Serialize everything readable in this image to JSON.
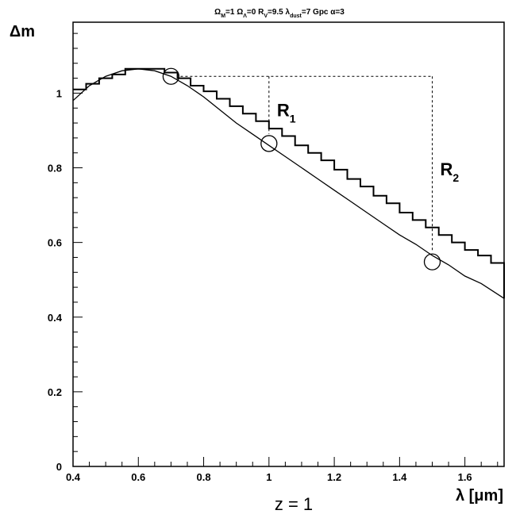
{
  "chart_data": {
    "type": "line",
    "title": "Ω_M=1 Ω_Λ=0 R_V=9.5 λ_dust=7 Gpc α=3",
    "xlabel": "λ [μm]",
    "ylabel": "Δm",
    "footer_label": "z = 1",
    "xlim": [
      0.4,
      1.72
    ],
    "ylim": [
      0,
      1.19
    ],
    "x_ticks": [
      0.4,
      0.6,
      0.8,
      1.0,
      1.2,
      1.4,
      1.6
    ],
    "x_tick_labels": [
      "0.4",
      "0.6",
      "0.8",
      "1",
      "1.2",
      "1.4",
      "1.6"
    ],
    "y_ticks": [
      0,
      0.2,
      0.4,
      0.6,
      0.8,
      1.0
    ],
    "y_tick_labels": [
      "0",
      "0.2",
      "0.4",
      "0.6",
      "0.8",
      "1"
    ],
    "series": [
      {
        "style": "smooth curve",
        "x": [
          0.4,
          0.45,
          0.5,
          0.55,
          0.6,
          0.65,
          0.7,
          0.75,
          0.8,
          0.85,
          0.9,
          0.95,
          1.0,
          1.05,
          1.1,
          1.15,
          1.2,
          1.25,
          1.3,
          1.35,
          1.4,
          1.45,
          1.5,
          1.55,
          1.6,
          1.65,
          1.72
        ],
        "y": [
          0.98,
          1.02,
          1.045,
          1.06,
          1.065,
          1.06,
          1.045,
          1.02,
          0.99,
          0.955,
          0.92,
          0.89,
          0.86,
          0.83,
          0.8,
          0.77,
          0.74,
          0.71,
          0.68,
          0.65,
          0.62,
          0.595,
          0.565,
          0.54,
          0.51,
          0.49,
          0.45
        ]
      },
      {
        "style": "step histogram",
        "bin_width": 0.04,
        "bin_edges_start": 0.4,
        "values": [
          1.01,
          1.025,
          1.04,
          1.05,
          1.065,
          1.065,
          1.065,
          1.055,
          1.04,
          1.02,
          1.005,
          0.985,
          0.965,
          0.945,
          0.925,
          0.905,
          0.885,
          0.86,
          0.84,
          0.82,
          0.795,
          0.77,
          0.75,
          0.725,
          0.705,
          0.68,
          0.66,
          0.64,
          0.62,
          0.6,
          0.58,
          0.565,
          0.545,
          0.525,
          0.51,
          0.49,
          0.47,
          0.455,
          0.45
        ]
      }
    ],
    "markers": [
      {
        "x": 0.7,
        "y": 1.045,
        "shape": "circle"
      },
      {
        "x": 1.0,
        "y": 0.865,
        "shape": "circle"
      },
      {
        "x": 1.5,
        "y": 0.548,
        "shape": "circle"
      }
    ],
    "reference_level": 1.045,
    "annotations": [
      {
        "text": "R",
        "subscript": "1",
        "x": 1.0,
        "from_y": 1.045,
        "to_y": 0.865
      },
      {
        "text": "R",
        "subscript": "2",
        "x": 1.5,
        "from_y": 1.045,
        "to_y": 0.548
      }
    ]
  }
}
